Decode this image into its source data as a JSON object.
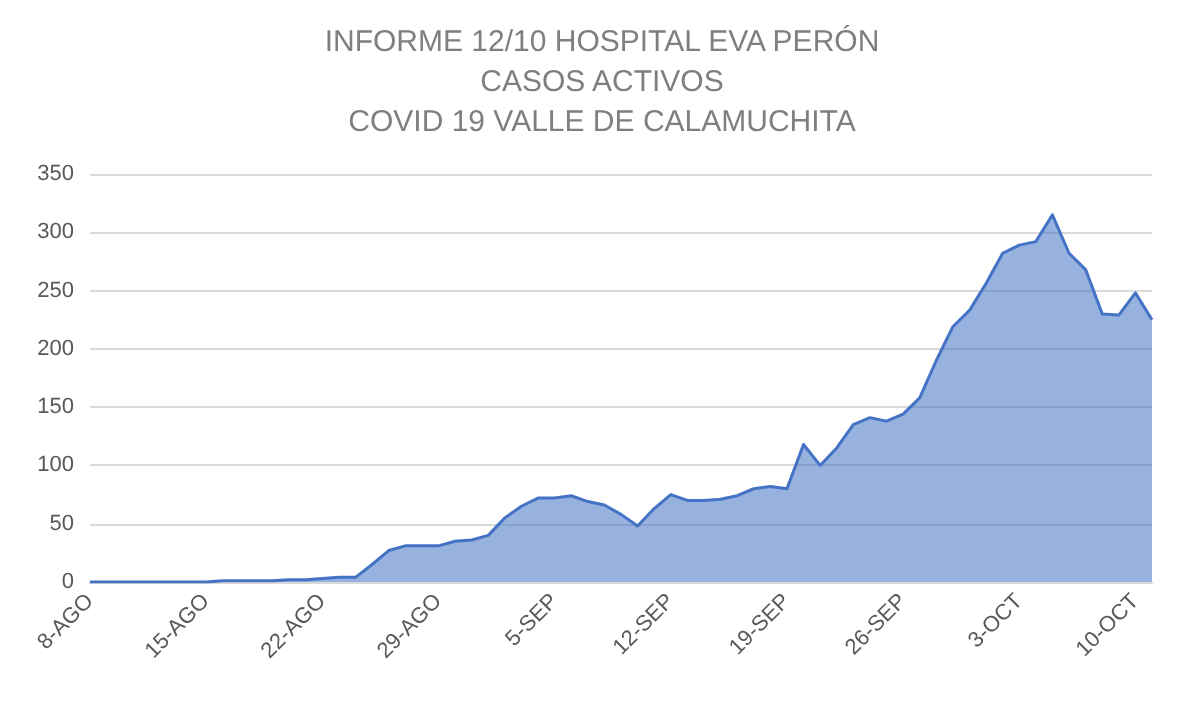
{
  "chart_data": {
    "type": "area",
    "title": "INFORME 12/10 HOSPITAL EVA PERÓN\nCASOS ACTIVOS\nCOVID 19 VALLE DE CALAMUCHITA",
    "categories": [
      "8-AGO",
      null,
      null,
      null,
      null,
      null,
      null,
      "15-AGO",
      null,
      null,
      null,
      null,
      null,
      null,
      "22-AGO",
      null,
      null,
      null,
      null,
      null,
      null,
      "29-AGO",
      null,
      null,
      null,
      null,
      null,
      null,
      "5-SEP",
      null,
      null,
      null,
      null,
      null,
      null,
      "12-SEP",
      null,
      null,
      null,
      null,
      null,
      null,
      "19-SEP",
      null,
      null,
      null,
      null,
      null,
      null,
      "26-SEP",
      null,
      null,
      null,
      null,
      null,
      null,
      "3-OCT",
      null,
      null,
      null,
      null,
      null,
      null,
      "10-OCT",
      null
    ],
    "values": [
      0,
      0,
      0,
      0,
      0,
      0,
      0,
      0,
      1,
      1,
      1,
      1,
      2,
      2,
      3,
      4,
      4,
      15,
      27,
      31,
      31,
      31,
      35,
      36,
      40,
      55,
      65,
      72,
      72,
      74,
      69,
      66,
      58,
      48,
      63,
      75,
      70,
      70,
      71,
      74,
      80,
      82,
      80,
      118,
      100,
      115,
      135,
      141,
      138,
      144,
      158,
      190,
      219,
      233,
      256,
      282,
      289,
      292,
      315,
      282,
      268,
      230,
      229,
      248,
      225
    ],
    "color": "#4472c4",
    "ylim": [
      0,
      350
    ],
    "yticks": [
      0,
      50,
      100,
      150,
      200,
      250,
      300,
      350
    ],
    "grid": "y"
  }
}
